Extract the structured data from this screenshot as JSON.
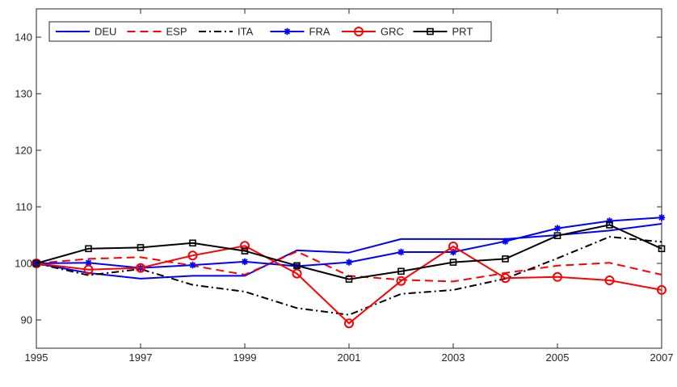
{
  "chart_data": {
    "type": "line",
    "x": [
      1995,
      1996,
      1997,
      1998,
      1999,
      2000,
      2001,
      2002,
      2003,
      2004,
      2005,
      2006,
      2007
    ],
    "xlim": [
      1995,
      2007
    ],
    "ylim": [
      85,
      145
    ],
    "xticks": [
      "1995",
      "1997",
      "1999",
      "2001",
      "2003",
      "2005",
      "2007"
    ],
    "yticks": [
      "90",
      "100",
      "110",
      "120",
      "130",
      "140"
    ],
    "xtick_values": [
      1995,
      1997,
      1999,
      2001,
      2003,
      2005,
      2007
    ],
    "ytick_values": [
      90,
      100,
      110,
      120,
      130,
      140
    ],
    "grid": false,
    "legend_position": "top-left",
    "series": [
      {
        "name": "DEU",
        "color": "#0000ff",
        "dash": "solid",
        "marker": "none",
        "values": [
          100,
          98.3,
          97.3,
          97.8,
          97.8,
          102.3,
          101.9,
          104.3,
          104.3,
          104.3,
          105.0,
          105.8,
          107.0
        ]
      },
      {
        "name": "ESP",
        "color": "#ff0000",
        "dash": "dashed",
        "marker": "none",
        "values": [
          100,
          100.8,
          101.1,
          99.6,
          98.0,
          102.1,
          97.8,
          97.1,
          96.8,
          98.3,
          99.6,
          100.1,
          98.0
        ]
      },
      {
        "name": "ITA",
        "color": "#000000",
        "dash": "dashdot",
        "marker": "none",
        "values": [
          100,
          97.9,
          99.0,
          96.2,
          95.0,
          92.1,
          90.9,
          94.6,
          95.3,
          97.3,
          100.9,
          104.7,
          103.8
        ]
      },
      {
        "name": "FRA",
        "color": "#0000ff",
        "dash": "solid",
        "marker": "asterisk",
        "values": [
          100,
          100.1,
          99.2,
          99.7,
          100.3,
          99.5,
          100.2,
          102.0,
          102.0,
          103.9,
          106.2,
          107.5,
          108.1
        ]
      },
      {
        "name": "GRC",
        "color": "#ff0000",
        "dash": "solid",
        "marker": "circle",
        "values": [
          100,
          98.9,
          99.2,
          101.4,
          103.1,
          98.2,
          89.4,
          96.9,
          103.0,
          97.4,
          97.6,
          97.0,
          95.3
        ]
      },
      {
        "name": "PRT",
        "color": "#000000",
        "dash": "solid",
        "marker": "square",
        "values": [
          100,
          102.6,
          102.8,
          103.6,
          102.2,
          99.6,
          97.2,
          98.6,
          100.2,
          100.8,
          104.9,
          106.8,
          102.6
        ]
      }
    ]
  }
}
